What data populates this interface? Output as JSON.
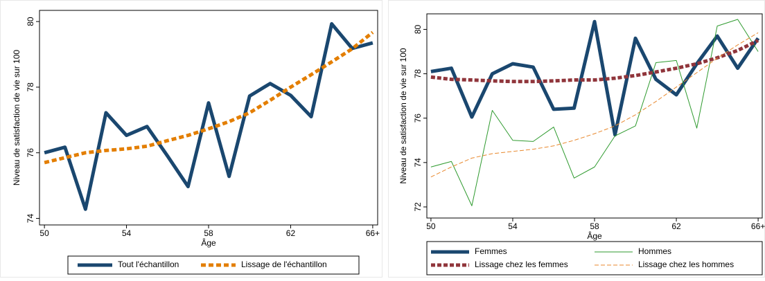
{
  "chart_data": [
    {
      "type": "line",
      "xlabel": "Âge",
      "ylabel": "Niveau de satisfaction de vie sur 100",
      "x": [
        50,
        51,
        52,
        53,
        54,
        55,
        56,
        57,
        58,
        59,
        60,
        61,
        62,
        63,
        64,
        65,
        66
      ],
      "xlim": [
        49.76,
        66.24
      ],
      "ylim": [
        73.8,
        80.34
      ],
      "xticks": [
        50,
        54,
        58,
        62,
        {
          "value": 66,
          "label": "66+"
        }
      ],
      "yticks": [
        74,
        76,
        78,
        80
      ],
      "series": [
        {
          "name": "Tout l'échantillon",
          "color": "#1a476f",
          "values": [
            76.0,
            76.17,
            74.28,
            77.22,
            76.53,
            76.8,
            75.9,
            74.97,
            77.52,
            75.28,
            77.73,
            78.11,
            77.75,
            77.1,
            79.93,
            79.18,
            79.35
          ]
        },
        {
          "name": "Lissage de l'échantillon",
          "color": "#e37e00",
          "values": [
            75.7,
            75.85,
            76.0,
            76.07,
            76.12,
            76.2,
            76.37,
            76.53,
            76.73,
            76.95,
            77.22,
            77.6,
            78.0,
            78.38,
            78.77,
            79.17,
            79.67
          ]
        }
      ]
    },
    {
      "type": "line",
      "xlabel": "Âge",
      "ylabel": "Niveau de satisfaction de vie sur 100",
      "x": [
        50,
        51,
        52,
        53,
        54,
        55,
        56,
        57,
        58,
        59,
        60,
        61,
        62,
        63,
        64,
        65,
        66
      ],
      "xlim": [
        49.8,
        66.2
      ],
      "ylim": [
        71.5,
        80.7
      ],
      "xticks": [
        50,
        54,
        58,
        62,
        {
          "value": 66,
          "label": "66+"
        }
      ],
      "yticks": [
        72,
        74,
        76,
        78,
        80
      ],
      "series": [
        {
          "name": "Femmes",
          "color": "#1a476f",
          "values": [
            78.1,
            78.25,
            76.05,
            78.0,
            78.45,
            78.3,
            76.4,
            76.45,
            80.35,
            75.25,
            79.6,
            77.75,
            77.05,
            78.45,
            79.7,
            78.25,
            79.6
          ]
        },
        {
          "name": "Hommes",
          "color": "#2e9a2e",
          "values": [
            73.8,
            74.05,
            72.05,
            76.35,
            75.0,
            74.95,
            75.6,
            73.3,
            73.8,
            75.2,
            75.65,
            78.5,
            78.6,
            75.55,
            80.15,
            80.45,
            79.0
          ]
        },
        {
          "name": "Lissage chez les femmes",
          "color": "#90353b",
          "values": [
            77.85,
            77.75,
            77.72,
            77.68,
            77.65,
            77.65,
            77.68,
            77.72,
            77.72,
            77.8,
            77.92,
            78.08,
            78.25,
            78.45,
            78.72,
            79.05,
            79.5
          ]
        },
        {
          "name": "Lissage chez les hommes",
          "color": "#e8872b",
          "values": [
            73.35,
            73.8,
            74.2,
            74.4,
            74.5,
            74.6,
            74.75,
            75.0,
            75.3,
            75.65,
            76.15,
            76.75,
            77.4,
            78.05,
            78.7,
            79.3,
            79.85
          ]
        }
      ]
    }
  ]
}
